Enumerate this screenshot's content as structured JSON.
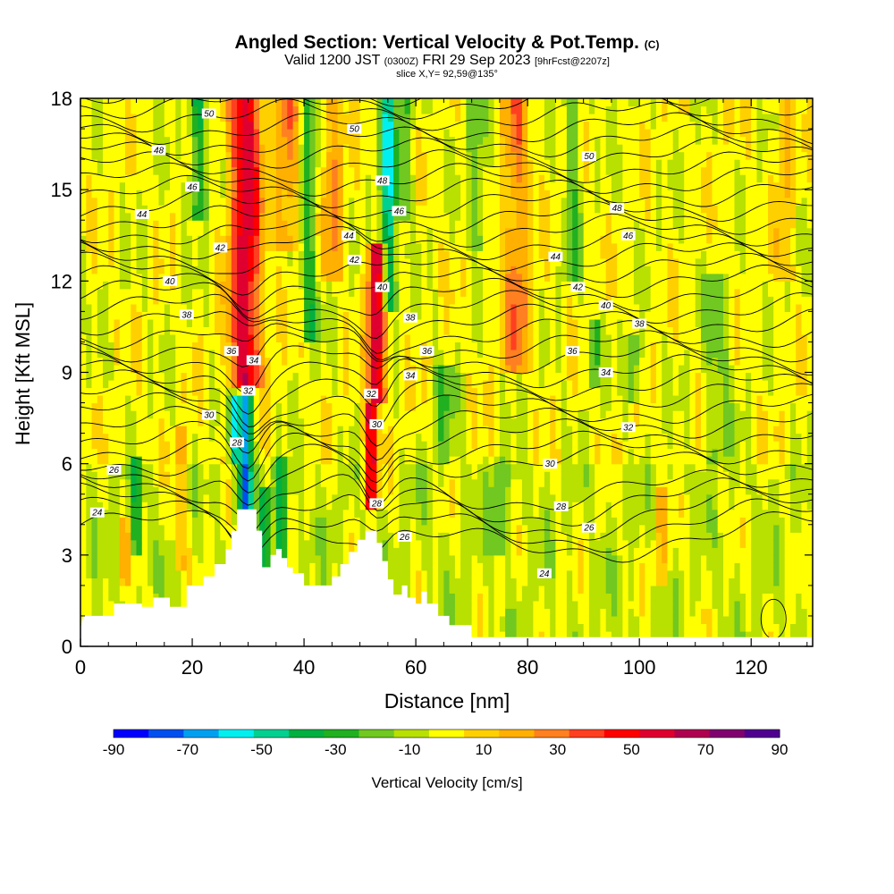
{
  "titles": {
    "main": "Angled Section: Vertical Velocity & Pot.Temp.",
    "main_suffix": "(C)",
    "valid_a": "Valid 1200 JST",
    "valid_b": "(0300Z)",
    "valid_c": "FRI 29 Sep 2023",
    "valid_d": "[9hrFcst@2207z]",
    "slice": "slice X,Y= 92,59@135°"
  },
  "chart_data": {
    "type": "heatmap",
    "title": "Angled Section: Vertical Velocity & Pot.Temp.",
    "xlabel": "Distance [nm]",
    "ylabel": "Height [Kft MSL]",
    "xlim": [
      0,
      131
    ],
    "ylim": [
      0,
      18
    ],
    "xticks": [
      "0",
      "20",
      "40",
      "60",
      "80",
      "100",
      "120"
    ],
    "yticks": [
      "0",
      "3",
      "6",
      "9",
      "12",
      "15",
      "18"
    ],
    "colorbar": {
      "label": "Vertical Velocity [cm/s]",
      "tick_labels": [
        "-90",
        "-70",
        "-50",
        "-30",
        "-10",
        "10",
        "30",
        "50",
        "70",
        "90"
      ],
      "colors": [
        "#0000ff",
        "#0050f0",
        "#00a0f0",
        "#00f0f0",
        "#00d090",
        "#00b040",
        "#20b020",
        "#70c820",
        "#b8e000",
        "#ffff00",
        "#ffd000",
        "#ffb000",
        "#ff8020",
        "#ff4020",
        "#ff0000",
        "#e00030",
        "#b00050",
        "#800070",
        "#500090"
      ]
    },
    "contour_labels": [
      {
        "x": 23,
        "y": 17.5,
        "v": "50"
      },
      {
        "x": 49,
        "y": 17.0,
        "v": "50"
      },
      {
        "x": 91,
        "y": 16.1,
        "v": "50"
      },
      {
        "x": 14,
        "y": 16.3,
        "v": "48"
      },
      {
        "x": 54,
        "y": 15.3,
        "v": "48"
      },
      {
        "x": 96,
        "y": 14.4,
        "v": "48"
      },
      {
        "x": 20,
        "y": 15.1,
        "v": "46"
      },
      {
        "x": 57,
        "y": 14.3,
        "v": "46"
      },
      {
        "x": 98,
        "y": 13.5,
        "v": "46"
      },
      {
        "x": 11,
        "y": 14.2,
        "v": "44"
      },
      {
        "x": 48,
        "y": 13.5,
        "v": "44"
      },
      {
        "x": 85,
        "y": 12.8,
        "v": "44"
      },
      {
        "x": 25,
        "y": 13.1,
        "v": "42"
      },
      {
        "x": 49,
        "y": 12.7,
        "v": "42"
      },
      {
        "x": 89,
        "y": 11.8,
        "v": "42"
      },
      {
        "x": 16,
        "y": 12.0,
        "v": "40"
      },
      {
        "x": 54,
        "y": 11.8,
        "v": "40"
      },
      {
        "x": 94,
        "y": 11.2,
        "v": "40"
      },
      {
        "x": 19,
        "y": 10.9,
        "v": "38"
      },
      {
        "x": 59,
        "y": 10.8,
        "v": "38"
      },
      {
        "x": 100,
        "y": 10.6,
        "v": "38"
      },
      {
        "x": 27,
        "y": 9.7,
        "v": "36"
      },
      {
        "x": 62,
        "y": 9.7,
        "v": "36"
      },
      {
        "x": 88,
        "y": 9.7,
        "v": "36"
      },
      {
        "x": 31,
        "y": 9.4,
        "v": "34"
      },
      {
        "x": 59,
        "y": 8.9,
        "v": "34"
      },
      {
        "x": 94,
        "y": 9.0,
        "v": "34"
      },
      {
        "x": 30,
        "y": 8.4,
        "v": "32"
      },
      {
        "x": 52,
        "y": 8.3,
        "v": "32"
      },
      {
        "x": 98,
        "y": 7.2,
        "v": "32"
      },
      {
        "x": 23,
        "y": 7.6,
        "v": "30"
      },
      {
        "x": 53,
        "y": 7.3,
        "v": "30"
      },
      {
        "x": 84,
        "y": 6.0,
        "v": "30"
      },
      {
        "x": 28,
        "y": 6.7,
        "v": "28"
      },
      {
        "x": 53,
        "y": 4.7,
        "v": "28"
      },
      {
        "x": 86,
        "y": 4.6,
        "v": "28"
      },
      {
        "x": 6,
        "y": 5.8,
        "v": "26"
      },
      {
        "x": 58,
        "y": 3.6,
        "v": "26"
      },
      {
        "x": 91,
        "y": 3.9,
        "v": "26"
      },
      {
        "x": 3,
        "y": 4.4,
        "v": "24"
      },
      {
        "x": 83,
        "y": 2.4,
        "v": "24"
      }
    ],
    "velocity_features": [
      {
        "x": 29.5,
        "y0": 8.5,
        "y1": 18,
        "w": 2.8,
        "v": 62
      },
      {
        "x": 53,
        "y0": 8.0,
        "y1": 13.0,
        "w": 1.6,
        "v": 70
      },
      {
        "x": 52,
        "y0": 4.3,
        "y1": 7.8,
        "w": 1.2,
        "v": 62
      },
      {
        "x": 29.5,
        "y0": 4.0,
        "y1": 8.0,
        "w": 1.2,
        "v": -75
      },
      {
        "x": 27.5,
        "y0": 6.0,
        "y1": 8.0,
        "w": 0.9,
        "v": -45
      },
      {
        "x": 55,
        "y0": 11.0,
        "y1": 18,
        "w": 1.4,
        "v": -52
      },
      {
        "x": 21,
        "y0": 14.0,
        "y1": 18,
        "w": 1.6,
        "v": -35
      },
      {
        "x": 37,
        "y0": 13.0,
        "y1": 18,
        "w": 2.2,
        "v": 28
      },
      {
        "x": 41,
        "y0": 10.0,
        "y1": 18,
        "w": 1.6,
        "v": -28
      },
      {
        "x": 45,
        "y0": 12.0,
        "y1": 18,
        "w": 2.0,
        "v": 25
      },
      {
        "x": 58,
        "y0": 14.0,
        "y1": 18,
        "w": 1.6,
        "v": -22
      },
      {
        "x": 78,
        "y0": 9.0,
        "y1": 18,
        "w": 2.4,
        "v": 30
      },
      {
        "x": 71,
        "y0": 13.0,
        "y1": 18,
        "w": 1.8,
        "v": -20
      },
      {
        "x": 88,
        "y0": 12.0,
        "y1": 18,
        "w": 1.5,
        "v": -22
      },
      {
        "x": 92,
        "y0": 8.5,
        "y1": 10.5,
        "w": 0.8,
        "v": -32
      },
      {
        "x": 99,
        "y0": 8.0,
        "y1": 10.0,
        "w": 1.2,
        "v": -30
      },
      {
        "x": 10,
        "y0": 3.0,
        "y1": 6.0,
        "w": 1.0,
        "v": -30
      },
      {
        "x": 36,
        "y0": 2.5,
        "y1": 6.0,
        "w": 1.2,
        "v": -35
      },
      {
        "x": 33,
        "y0": 2.5,
        "y1": 5.0,
        "w": 0.8,
        "v": -40
      },
      {
        "x": 8,
        "y0": 2.0,
        "y1": 4.0,
        "w": 0.8,
        "v": 22
      },
      {
        "x": 18,
        "y0": 2.5,
        "y1": 7.0,
        "w": 1.2,
        "v": 20
      },
      {
        "x": 104,
        "y0": 2.0,
        "y1": 5.0,
        "w": 1.4,
        "v": 20
      },
      {
        "x": 126,
        "y0": 12.0,
        "y1": 18,
        "w": 1.5,
        "v": 18
      },
      {
        "x": 114,
        "y0": 6.0,
        "y1": 12.0,
        "w": 2.2,
        "v": -18
      },
      {
        "x": 65,
        "y0": 6.0,
        "y1": 9.0,
        "w": 2.0,
        "v": -20
      },
      {
        "x": 75,
        "y0": 3.0,
        "y1": 6.0,
        "w": 2.0,
        "v": -15
      }
    ],
    "terrain": [
      [
        0,
        0.6
      ],
      [
        0.5,
        1.0
      ],
      [
        6,
        1.0
      ],
      [
        6,
        1.4
      ],
      [
        11,
        1.4
      ],
      [
        11,
        1.3
      ],
      [
        13,
        1.3
      ],
      [
        13,
        1.6
      ],
      [
        16,
        1.6
      ],
      [
        16,
        1.3
      ],
      [
        19,
        1.3
      ],
      [
        19,
        2.0
      ],
      [
        22,
        2.0
      ],
      [
        22,
        2.3
      ],
      [
        24,
        2.3
      ],
      [
        24,
        2.7
      ],
      [
        26,
        2.7
      ],
      [
        26,
        3.2
      ],
      [
        27,
        3.2
      ],
      [
        27,
        3.8
      ],
      [
        28,
        3.8
      ],
      [
        28,
        4.5
      ],
      [
        31.5,
        4.5
      ],
      [
        31.5,
        3.8
      ],
      [
        32.5,
        3.8
      ],
      [
        32.5,
        2.6
      ],
      [
        34,
        2.6
      ],
      [
        34,
        3.0
      ],
      [
        35,
        3.0
      ],
      [
        35,
        3.2
      ],
      [
        36,
        3.2
      ],
      [
        36,
        2.9
      ],
      [
        37,
        2.9
      ],
      [
        37,
        2.6
      ],
      [
        38,
        2.6
      ],
      [
        38,
        2.4
      ],
      [
        40,
        2.4
      ],
      [
        40,
        2.0
      ],
      [
        45,
        2.0
      ],
      [
        45,
        2.3
      ],
      [
        46.5,
        2.3
      ],
      [
        46.5,
        2.7
      ],
      [
        48,
        2.7
      ],
      [
        48,
        3.1
      ],
      [
        49.5,
        3.1
      ],
      [
        49.5,
        3.5
      ],
      [
        51,
        3.5
      ],
      [
        51,
        3.8
      ],
      [
        53,
        3.8
      ],
      [
        53,
        3.4
      ],
      [
        54,
        3.4
      ],
      [
        54,
        2.8
      ],
      [
        55,
        2.8
      ],
      [
        55,
        2.2
      ],
      [
        56,
        2.2
      ],
      [
        56,
        1.7
      ],
      [
        57.5,
        1.7
      ],
      [
        57.5,
        2.0
      ],
      [
        58.5,
        2.0
      ],
      [
        58.5,
        1.6
      ],
      [
        60,
        1.6
      ],
      [
        60,
        1.4
      ],
      [
        61,
        1.4
      ],
      [
        61,
        1.8
      ],
      [
        62,
        1.8
      ],
      [
        62,
        1.4
      ],
      [
        64,
        1.4
      ],
      [
        64,
        1.0
      ],
      [
        66,
        1.0
      ],
      [
        66,
        0.7
      ],
      [
        70,
        0.7
      ],
      [
        70,
        0.3
      ],
      [
        131,
        0.3
      ]
    ]
  }
}
